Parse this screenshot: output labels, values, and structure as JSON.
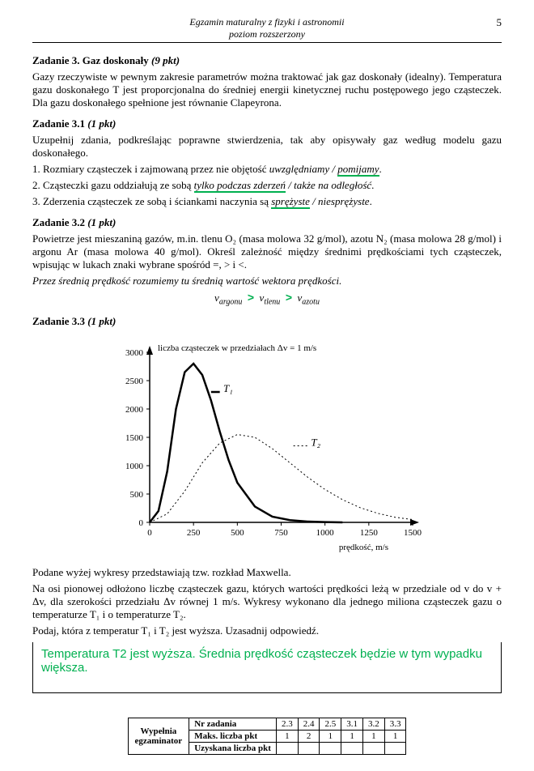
{
  "header": {
    "title_line1": "Egzamin maturalny z fizyki i astronomii",
    "title_line2": "poziom rozszerzony",
    "page_number": "5"
  },
  "task3": {
    "title": "Zadanie 3. Gaz doskonały",
    "points": "(9 pkt)",
    "intro": "Gazy rzeczywiste w pewnym zakresie parametrów można traktować jak gaz doskonały (idealny). Temperatura gazu doskonałego T jest proporcjonalna do średniej energii kinetycznej ruchu postępowego jego cząsteczek. Dla gazu doskonałego spełnione jest równanie Clapeyrona."
  },
  "task3_1": {
    "title": "Zadanie 3.1",
    "points": "(1 pkt)",
    "intro": "Uzupełnij zdania, podkreślając poprawne stwierdzenia, tak aby opisywały gaz według modelu gazu doskonałego.",
    "s1_a": "1. Rozmiary cząsteczek i zajmowaną przez nie objętość ",
    "s1_opt1": "uwzględniamy",
    "s1_sep": " / ",
    "s1_opt2": "pomijamy",
    "s1_end": ".",
    "s2_a": "2. Cząsteczki gazu oddziałują ze sobą ",
    "s2_opt1": "tylko podczas zderzeń",
    "s2_sep": " / ",
    "s2_opt2": "także na odległość",
    "s2_end": ".",
    "s3_a": "3. Zderzenia cząsteczek ze sobą i ściankami naczynia są ",
    "s3_opt1": "sprężyste",
    "s3_sep": " / ",
    "s3_opt2": "niesprężyste",
    "s3_end": "."
  },
  "task3_2": {
    "title": "Zadanie 3.2",
    "points": "(1 pkt)",
    "text": "Powietrze jest mieszaniną gazów, m.in. tlenu O₂ (masa molowa 32 g/mol), azotu N₂ (masa molowa 28 g/mol) i argonu Ar (masa molowa 40 g/mol). Określ zależność między średnimi prędkościami tych cząsteczek, wpisując w lukach znaki wybrane spośród =, > i <.",
    "note": "Przez średnią prędkość rozumiemy tu średnią wartość wektora prędkości.",
    "v_argonu": "v",
    "v_argonu_sub": "argonu",
    "gt1": ">",
    "v_tlenu": "v",
    "v_tlenu_sub": "tlenu",
    "gt2": ">",
    "v_azotu": "v",
    "v_azotu_sub": "azotu"
  },
  "task3_3": {
    "title": "Zadanie 3.3",
    "points": "(1 pkt)",
    "chart": {
      "ylabel": "liczba cząsteczek w przedziałach Δv = 1 m/s",
      "xlabel": "prędkość, m/s",
      "yticks": [
        "0",
        "500",
        "1000",
        "1500",
        "2000",
        "2500",
        "3000"
      ],
      "xticks": [
        "0",
        "250",
        "500",
        "750",
        "1000",
        "1250",
        "1500"
      ],
      "series1_label": "T₁",
      "series2_label": "T₂",
      "curve1_color": "#000000",
      "curve2_color": "#000000",
      "curve1_width": 2.5,
      "curve2_width": 1,
      "curve2_dash": "2,3",
      "curve1_points": [
        [
          0,
          0
        ],
        [
          50,
          200
        ],
        [
          100,
          900
        ],
        [
          150,
          2000
        ],
        [
          200,
          2650
        ],
        [
          250,
          2800
        ],
        [
          300,
          2600
        ],
        [
          350,
          2150
        ],
        [
          400,
          1600
        ],
        [
          450,
          1100
        ],
        [
          500,
          700
        ],
        [
          600,
          280
        ],
        [
          700,
          100
        ],
        [
          800,
          40
        ],
        [
          900,
          15
        ],
        [
          1000,
          5
        ],
        [
          1100,
          0
        ]
      ],
      "curve2_points": [
        [
          0,
          0
        ],
        [
          100,
          150
        ],
        [
          200,
          550
        ],
        [
          300,
          1050
        ],
        [
          400,
          1400
        ],
        [
          500,
          1550
        ],
        [
          600,
          1500
        ],
        [
          700,
          1300
        ],
        [
          800,
          1050
        ],
        [
          900,
          800
        ],
        [
          1000,
          580
        ],
        [
          1100,
          400
        ],
        [
          1200,
          260
        ],
        [
          1300,
          160
        ],
        [
          1400,
          90
        ],
        [
          1500,
          50
        ]
      ]
    },
    "desc1": "Podane wyżej wykresy przedstawiają tzw. rozkład Maxwella.",
    "desc2": "Na osi pionowej odłożono liczbę cząsteczek gazu, których wartości prędkości leżą w przedziale od v do v + Δv, dla szerokości przedziału Δv równej 1 m/s. Wykresy wykonano dla jednego miliona cząsteczek gazu o temperaturze T₁ i o temperaturze T₂.",
    "desc3": "Podaj, która z temperatur T₁ i T₂ jest wyższa. Uzasadnij odpowiedź.",
    "answer": "Temperatura T2 jest wyższa. Średnia prędkość cząsteczek będzie w tym wypadku większa."
  },
  "footer": {
    "left_label1": "Wypełnia",
    "left_label2": "egzaminator",
    "row1_label": "Nr zadania",
    "row1_vals": [
      "2.3",
      "2.4",
      "2.5",
      "3.1",
      "3.2",
      "3.3"
    ],
    "row2_label": "Maks. liczba pkt",
    "row2_vals": [
      "1",
      "2",
      "1",
      "1",
      "1",
      "1"
    ],
    "row3_label": "Uzyskana liczba pkt",
    "row3_vals": [
      "",
      "",
      "",
      "",
      "",
      ""
    ]
  }
}
